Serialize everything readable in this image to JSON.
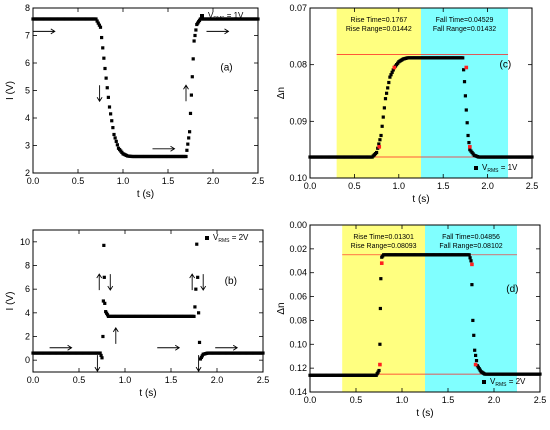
{
  "chart_data": [
    {
      "id": "a",
      "type": "scatter",
      "panel_label": "(a)",
      "xlabel": "t (s)",
      "ylabel": "I (V)",
      "xlim": [
        0,
        2.5
      ],
      "ylim": [
        2,
        8
      ],
      "xticks": [
        "0.0",
        "0.5",
        "1.0",
        "1.5",
        "2.0",
        "2.5"
      ],
      "yticks": [
        "2",
        "3",
        "4",
        "5",
        "6",
        "7",
        "8"
      ],
      "legend": {
        "marker": "■",
        "main": "V",
        "sub": "RMS",
        "rest": " = 1V",
        "placement": "top-right"
      },
      "series": [
        {
          "values": [
            [
              0,
              7.6
            ],
            [
              0.7,
              7.6
            ],
            [
              0.75,
              7.3
            ],
            [
              0.8,
              5.8
            ],
            [
              0.85,
              4.4
            ],
            [
              0.9,
              3.4
            ],
            [
              0.95,
              2.9
            ],
            [
              1.0,
              2.7
            ],
            [
              1.05,
              2.62
            ],
            [
              1.1,
              2.6
            ],
            [
              1.7,
              2.6
            ],
            [
              1.74,
              3.5
            ],
            [
              1.77,
              5.5
            ],
            [
              1.79,
              6.8
            ],
            [
              1.82,
              7.4
            ],
            [
              1.86,
              7.6
            ],
            [
              2.5,
              7.6
            ]
          ]
        }
      ],
      "arrows": [
        {
          "x": 0.12,
          "y": 7.15,
          "dir": "right"
        },
        {
          "x": 2.05,
          "y": 7.15,
          "dir": "right"
        },
        {
          "x": 1.45,
          "y": 2.88,
          "dir": "right"
        },
        {
          "x": 0.74,
          "y": 4.9,
          "dir": "down"
        },
        {
          "x": 1.7,
          "y": 4.9,
          "dir": "up"
        }
      ]
    },
    {
      "id": "b",
      "type": "scatter",
      "panel_label": "(b)",
      "xlabel": "t (s)",
      "ylabel": "I (V)",
      "xlim": [
        0,
        2.5
      ],
      "ylim": [
        -1,
        11
      ],
      "xticks": [
        "0.0",
        "0.5",
        "1.0",
        "1.5",
        "2.0",
        "2.5"
      ],
      "yticks": [
        "0",
        "2",
        "4",
        "6",
        "8",
        "10"
      ],
      "legend": {
        "marker": "■",
        "main": "V",
        "sub": "RMS",
        "rest": " = 2V",
        "placement": "top-right"
      },
      "series": [
        {
          "values": [
            [
              0,
              0.6
            ],
            [
              0.73,
              0.6
            ],
            [
              0.75,
              0.2
            ],
            [
              0.76,
              2
            ],
            [
              0.765,
              5
            ],
            [
              0.77,
              9.7
            ],
            [
              0.775,
              7
            ],
            [
              0.78,
              4.8
            ],
            [
              0.79,
              4.1
            ],
            [
              0.82,
              3.7
            ],
            [
              1.0,
              3.7
            ],
            [
              1.5,
              3.7
            ],
            [
              1.75,
              3.7
            ],
            [
              1.76,
              4.5
            ],
            [
              1.77,
              6
            ],
            [
              1.78,
              9.8
            ],
            [
              1.79,
              7
            ],
            [
              1.8,
              4
            ],
            [
              1.81,
              1.5
            ],
            [
              1.82,
              0.1
            ],
            [
              1.85,
              0.5
            ],
            [
              1.9,
              0.6
            ],
            [
              2.5,
              0.6
            ]
          ]
        }
      ],
      "arrows": [
        {
          "x": 0.3,
          "y": 1.05,
          "dir": "right"
        },
        {
          "x": 1.47,
          "y": 1.05,
          "dir": "right"
        },
        {
          "x": 2.1,
          "y": 1.05,
          "dir": "right"
        },
        {
          "x": 0.7,
          "y": -0.25,
          "dir": "down"
        },
        {
          "x": 0.9,
          "y": 2.05,
          "dir": "up"
        },
        {
          "x": 1.8,
          "y": -0.25,
          "dir": "down"
        },
        {
          "x": 0.72,
          "y": 6.6,
          "dir": "up"
        },
        {
          "x": 0.84,
          "y": 6.6,
          "dir": "down"
        },
        {
          "x": 1.73,
          "y": 6.6,
          "dir": "up"
        },
        {
          "x": 1.85,
          "y": 6.6,
          "dir": "down"
        }
      ]
    },
    {
      "id": "c",
      "type": "scatter",
      "panel_label": "(c)",
      "xlabel": "t (s)",
      "ylabel": "Δn",
      "xlim": [
        0,
        2.5
      ],
      "ylim": [
        0.07,
        0.1
      ],
      "y_inverted": true,
      "xticks": [
        "0.0",
        "0.5",
        "1.0",
        "1.5",
        "2.0",
        "2.5"
      ],
      "yticks": [
        "0.07",
        "0.08",
        "0.09",
        "0.10"
      ],
      "legend": {
        "marker": "■",
        "main": "V",
        "sub": "RMS",
        "rest": " = 1V",
        "placement": "bottom-right"
      },
      "rise_region": [
        0.3,
        1.25
      ],
      "fall_region": [
        1.25,
        2.23
      ],
      "rise_text": [
        "Rise Time=0.1767",
        "Rise Range=0.01442"
      ],
      "fall_text": [
        "Fall Time=0.04529",
        "Fall Range=0.01432"
      ],
      "ref_lines": [
        0.0782,
        0.0963
      ],
      "red_points": [
        [
          0.78,
          0.0945
        ],
        [
          0.95,
          0.0805
        ],
        [
          1.76,
          0.0805
        ],
        [
          1.8,
          0.0945
        ]
      ],
      "series": [
        {
          "values": [
            [
              0,
              0.0963
            ],
            [
              0.7,
              0.0963
            ],
            [
              0.75,
              0.0955
            ],
            [
              0.8,
              0.0925
            ],
            [
              0.85,
              0.086
            ],
            [
              0.9,
              0.0822
            ],
            [
              0.95,
              0.0805
            ],
            [
              1.0,
              0.0795
            ],
            [
              1.05,
              0.079
            ],
            [
              1.1,
              0.0788
            ],
            [
              1.72,
              0.0788
            ],
            [
              1.74,
              0.083
            ],
            [
              1.76,
              0.088
            ],
            [
              1.78,
              0.0925
            ],
            [
              1.8,
              0.095
            ],
            [
              1.85,
              0.096
            ],
            [
              1.9,
              0.0963
            ],
            [
              2.5,
              0.0963
            ]
          ]
        }
      ]
    },
    {
      "id": "d",
      "type": "scatter",
      "panel_label": "(d)",
      "xlabel": "t (s)",
      "ylabel": "Δn",
      "xlim": [
        0,
        2.5
      ],
      "ylim": [
        0,
        0.14
      ],
      "y_inverted": true,
      "xticks": [
        "0.0",
        "0.5",
        "1.0",
        "1.5",
        "2.0",
        "2.5"
      ],
      "yticks": [
        "0.00",
        "0.02",
        "0.04",
        "0.06",
        "0.08",
        "0.10",
        "0.12",
        "0.14"
      ],
      "legend": {
        "marker": "■",
        "main": "V",
        "sub": "RMS",
        "rest": " = 2V",
        "placement": "bottom-right"
      },
      "rise_region": [
        0.35,
        1.25
      ],
      "fall_region": [
        1.25,
        2.25
      ],
      "rise_text": [
        "Rise Time=0.01301",
        "Rise Range=0.08093"
      ],
      "fall_text": [
        "Fall Time=0.04856",
        "Fall Range=0.08102"
      ],
      "ref_lines": [
        0.025,
        0.125
      ],
      "red_points": [
        [
          0.76,
          0.117
        ],
        [
          0.78,
          0.032
        ],
        [
          1.76,
          0.033
        ],
        [
          1.8,
          0.117
        ]
      ],
      "series": [
        {
          "values": [
            [
              0,
              0.126
            ],
            [
              0.72,
              0.126
            ],
            [
              0.75,
              0.122
            ],
            [
              0.76,
              0.1
            ],
            [
              0.765,
              0.07
            ],
            [
              0.77,
              0.045
            ],
            [
              0.78,
              0.027
            ],
            [
              0.8,
              0.025
            ],
            [
              1.73,
              0.025
            ],
            [
              1.75,
              0.03
            ],
            [
              1.76,
              0.05
            ],
            [
              1.77,
              0.08
            ],
            [
              1.79,
              0.105
            ],
            [
              1.82,
              0.118
            ],
            [
              1.86,
              0.123
            ],
            [
              1.9,
              0.125
            ],
            [
              2.5,
              0.125
            ]
          ]
        }
      ]
    }
  ]
}
